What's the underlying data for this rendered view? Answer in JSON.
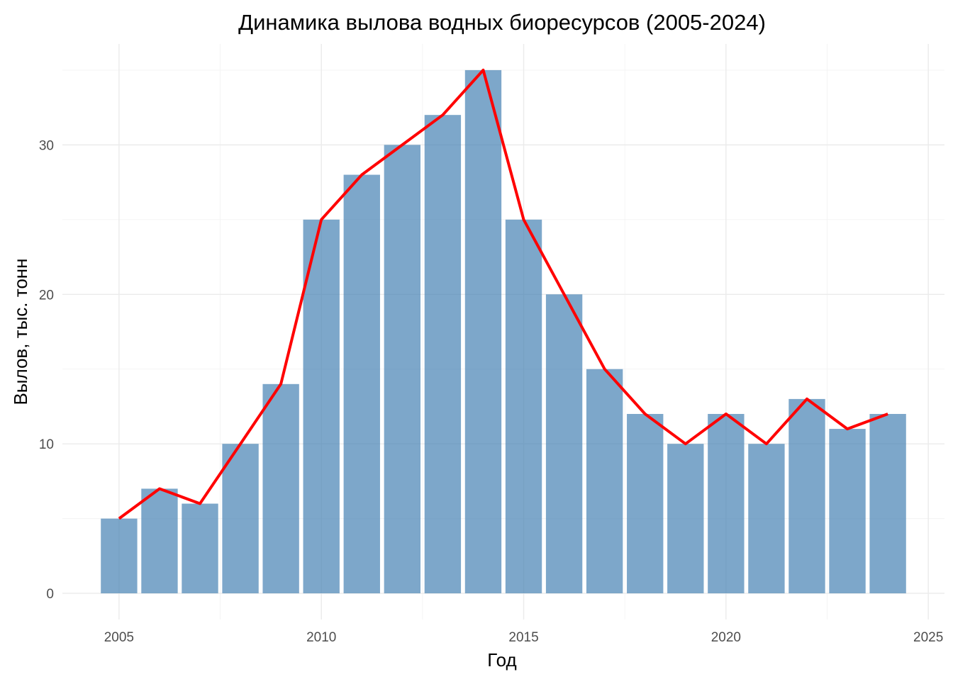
{
  "chart_data": {
    "type": "bar",
    "title": "Динамика вылова водных биоресурсов (2005-2024)",
    "xlabel": "Год",
    "ylabel": "Вылов, тыс. тонн",
    "x": [
      2005,
      2006,
      2007,
      2008,
      2009,
      2010,
      2011,
      2012,
      2013,
      2014,
      2015,
      2016,
      2017,
      2018,
      2019,
      2020,
      2021,
      2022,
      2023,
      2024
    ],
    "values": [
      5,
      7,
      6,
      10,
      14,
      25,
      28,
      30,
      32,
      35,
      25,
      20,
      15,
      12,
      10,
      12,
      10,
      13,
      11,
      12
    ],
    "overlay_line": {
      "type": "line",
      "color": "#ff0000",
      "same_values_as_bars": true
    },
    "bar_color": "#4682b4",
    "xlim": [
      2003.6,
      2025.4
    ],
    "ylim": [
      -1.75,
      36.75
    ],
    "x_ticks": [
      "2005",
      "2010",
      "2015",
      "2020",
      "2025"
    ],
    "x_tick_values": [
      2005,
      2010,
      2015,
      2020,
      2025
    ],
    "y_ticks": [
      "0",
      "10",
      "20",
      "30"
    ],
    "y_tick_values": [
      0,
      10,
      20,
      30
    ],
    "grid": true,
    "legend": "none"
  }
}
